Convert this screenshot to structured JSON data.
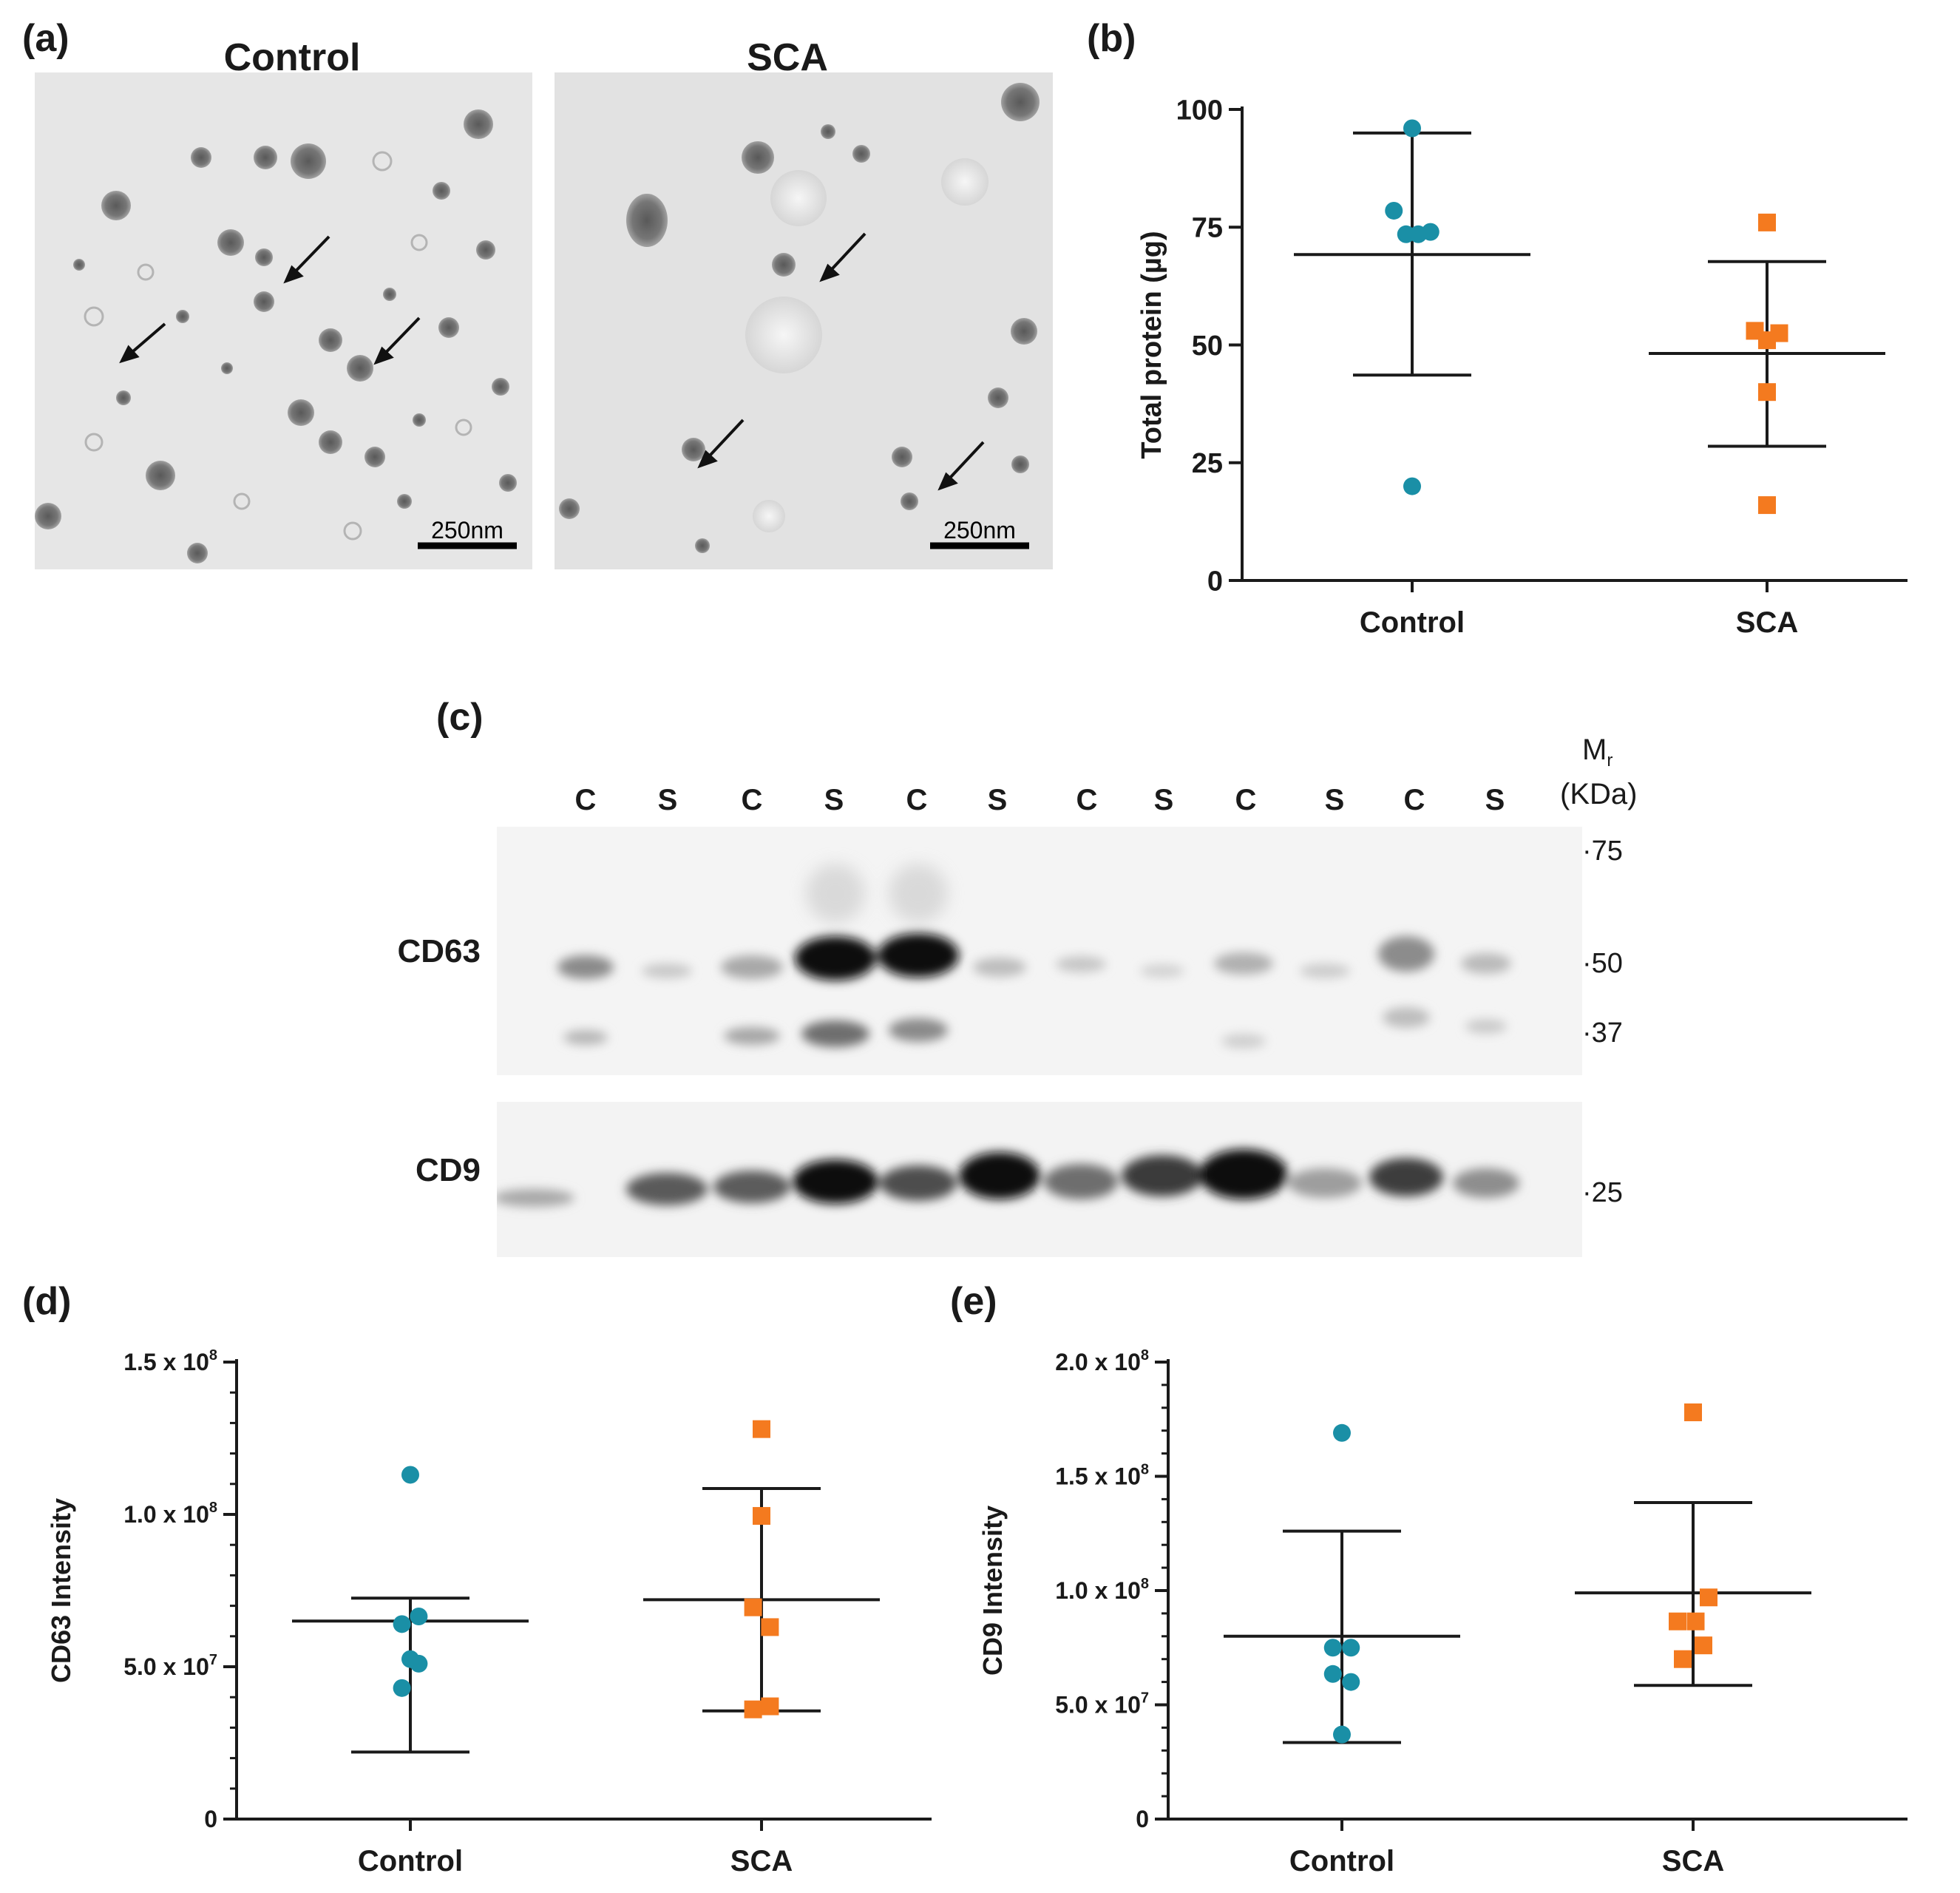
{
  "figure": {
    "panel_a": {
      "letter": "(a)",
      "images": [
        {
          "title": "Control",
          "scale_bar": "250nm"
        },
        {
          "title": "SCA",
          "scale_bar": "250nm"
        }
      ]
    },
    "panel_c": {
      "letter": "(c)",
      "lanes": [
        "C",
        "S",
        "C",
        "S",
        "C",
        "S",
        "C",
        "S",
        "C",
        "S",
        "C",
        "S"
      ],
      "mr_label": "M",
      "mr_sub": "r",
      "unit_label": "(KDa)",
      "blots": [
        {
          "label": "CD63",
          "markers": [
            "·75",
            "·50",
            "·37"
          ]
        },
        {
          "label": "CD9",
          "markers": [
            "·25"
          ]
        }
      ]
    }
  },
  "colors": {
    "control": "#1a8fa6",
    "sca": "#f47a1f",
    "axis": "#1a1a1a"
  },
  "chart_data": [
    {
      "panel": "(b)",
      "type": "scatter",
      "ylabel": "Total protein (µg)",
      "xlabel": "",
      "categories": [
        "Control",
        "SCA"
      ],
      "ylim": [
        0,
        100
      ],
      "yticks": [
        0,
        25,
        50,
        75,
        100
      ],
      "ytick_labels": [
        "0",
        "25",
        "50",
        "75",
        "100"
      ],
      "minor_ticks": false,
      "series": [
        {
          "name": "Control",
          "marker": "circle",
          "points": [
            96,
            78.5,
            73.5,
            73.5,
            74,
            20
          ],
          "offsets": [
            0,
            -0.45,
            -0.15,
            0.15,
            0.45,
            0
          ],
          "mean": 69.2,
          "sd_low": 43.6,
          "sd_high": 95
        },
        {
          "name": "SCA",
          "marker": "square",
          "points": [
            76,
            53,
            51,
            52.5,
            40,
            16
          ],
          "offsets": [
            0,
            -0.3,
            0,
            0.3,
            0,
            0
          ],
          "mean": 48.2,
          "sd_low": 28.5,
          "sd_high": 67.7
        }
      ]
    },
    {
      "panel": "(d)",
      "type": "scatter",
      "ylabel": "CD63 Intensity",
      "xlabel": "",
      "categories": [
        "Control",
        "SCA"
      ],
      "ylim": [
        0,
        150000000
      ],
      "yticks": [
        0,
        50000000,
        100000000,
        150000000
      ],
      "ytick_labels": [
        "0",
        "5.0 x 10",
        "1.0 x 10",
        "1.5 x 10"
      ],
      "ytick_exps": [
        "",
        "7",
        "8",
        "8"
      ],
      "minor_ticks": true,
      "series": [
        {
          "name": "Control",
          "marker": "circle",
          "points": [
            113000000,
            66500000,
            64000000,
            52500000,
            51000000,
            43000000
          ],
          "offsets": [
            0,
            0.3,
            -0.3,
            0,
            0.3,
            -0.3
          ],
          "mean": 65000000,
          "sd_low": 22000000,
          "sd_high": 72500000
        },
        {
          "name": "SCA",
          "marker": "square",
          "points": [
            128000000,
            99500000,
            69500000,
            63000000,
            36000000,
            37000000
          ],
          "offsets": [
            0,
            0,
            -0.3,
            0.3,
            -0.3,
            0.3
          ],
          "mean": 72000000,
          "sd_low": 35500000,
          "sd_high": 108500000
        }
      ]
    },
    {
      "panel": "(e)",
      "type": "scatter",
      "ylabel": "CD9 Intensity",
      "xlabel": "",
      "categories": [
        "Control",
        "SCA"
      ],
      "ylim": [
        0,
        200000000
      ],
      "yticks": [
        0,
        50000000,
        100000000,
        150000000,
        200000000
      ],
      "ytick_labels": [
        "0",
        "5.0 x 10",
        "1.0 x 10",
        "1.5 x 10",
        "2.0 x 10"
      ],
      "ytick_exps": [
        "",
        "7",
        "8",
        "8",
        "8"
      ],
      "minor_ticks": true,
      "series": [
        {
          "name": "Control",
          "marker": "circle",
          "points": [
            169000000,
            75000000,
            75000000,
            63500000,
            60000000,
            37000000
          ],
          "offsets": [
            0,
            -0.35,
            0.35,
            -0.35,
            0.35,
            0
          ],
          "mean": 80000000,
          "sd_low": 33500000,
          "sd_high": 126000000
        },
        {
          "name": "SCA",
          "marker": "square",
          "points": [
            178000000,
            97000000,
            86500000,
            86500000,
            76000000,
            70000000
          ],
          "offsets": [
            0,
            0.6,
            -0.6,
            0.1,
            0.4,
            -0.4
          ],
          "mean": 99000000,
          "sd_low": 58500000,
          "sd_high": 138500000
        }
      ]
    }
  ]
}
